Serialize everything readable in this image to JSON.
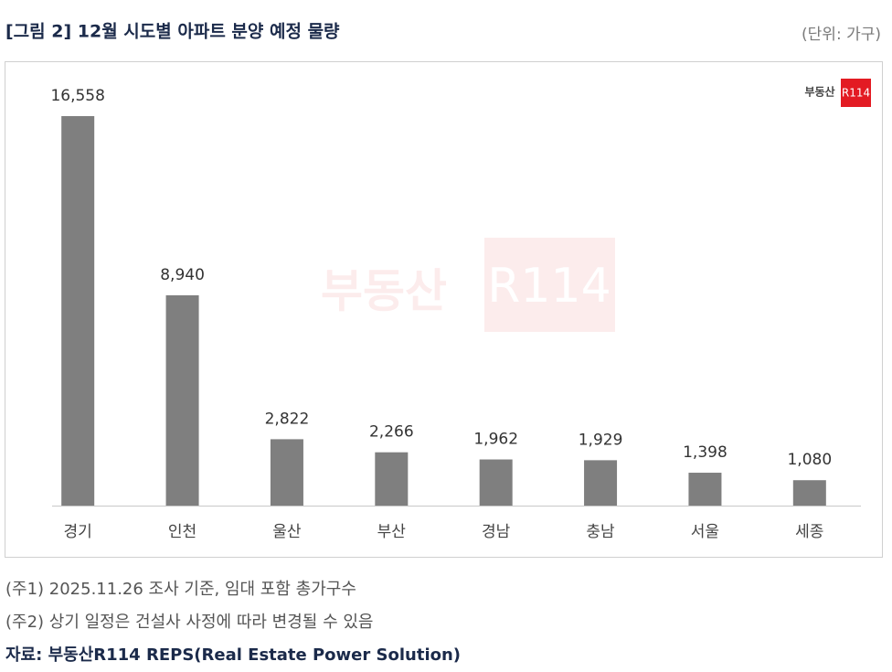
{
  "header": {
    "title": "[그림 2] 12월 시도별 아파트 분양 예정 물량",
    "unit": "(단위: 가구)"
  },
  "chart_data": {
    "type": "bar",
    "categories": [
      "경기",
      "인천",
      "울산",
      "부산",
      "경남",
      "충남",
      "서울",
      "세종"
    ],
    "values": [
      16558,
      8940,
      2822,
      2266,
      1962,
      1929,
      1398,
      1080
    ],
    "value_labels": [
      "16,558",
      "8,940",
      "2,822",
      "2,266",
      "1,962",
      "1,929",
      "1,398",
      "1,080"
    ],
    "color": "#7f7f7f"
  },
  "logo": {
    "text": "부동산",
    "badge": "R114"
  },
  "notes": [
    "(주1) 2025.11.26 조사 기준, 임대 포함 총가구수",
    "(주2) 상기 일정은 건설사 사정에 따라 변경될 수 있음"
  ],
  "source": "자료: 부동산R114 REPS(Real Estate Power Solution)"
}
